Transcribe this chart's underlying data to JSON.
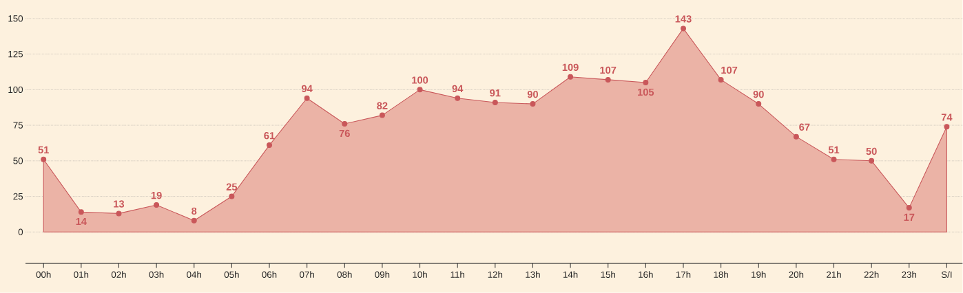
{
  "chart_data": {
    "type": "area",
    "categories": [
      "00h",
      "01h",
      "02h",
      "03h",
      "04h",
      "05h",
      "06h",
      "07h",
      "08h",
      "09h",
      "10h",
      "11h",
      "12h",
      "13h",
      "14h",
      "15h",
      "16h",
      "17h",
      "18h",
      "19h",
      "20h",
      "21h",
      "22h",
      "23h",
      "S/I"
    ],
    "values": [
      51,
      14,
      13,
      19,
      8,
      25,
      61,
      94,
      76,
      82,
      100,
      94,
      91,
      90,
      109,
      107,
      105,
      143,
      107,
      90,
      67,
      51,
      50,
      17,
      74
    ],
    "color": "#c9575a",
    "ylim": [
      -22,
      163
    ],
    "yticks": [
      0,
      25,
      50,
      75,
      100,
      125,
      150
    ],
    "grid": "y",
    "marker": "circle",
    "data_labels": true
  }
}
